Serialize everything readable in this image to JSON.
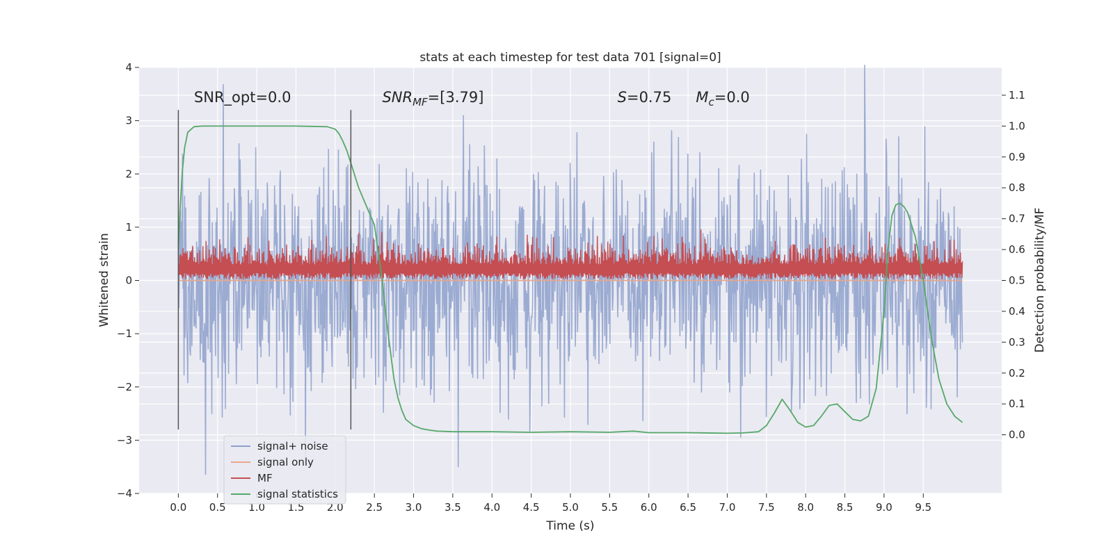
{
  "chart_data": {
    "type": "line",
    "title": "stats at each timestep for test data 701 [signal=0]",
    "xlabel": "Time (s)",
    "ylabel": "Whitened strain",
    "y2label": "Detection probability/MF",
    "xlim": [
      -0.5,
      10.5
    ],
    "ylim": [
      -4.0,
      4.0
    ],
    "y2lim": [
      -0.19,
      1.19
    ],
    "grid": true,
    "x_ticks": [
      0.0,
      0.5,
      1.0,
      1.5,
      2.0,
      2.5,
      3.0,
      3.5,
      4.0,
      4.5,
      5.0,
      5.5,
      6.0,
      6.5,
      7.0,
      7.5,
      8.0,
      8.5,
      9.0,
      9.5
    ],
    "x_tick_labels": [
      "0.0",
      "0.5",
      "1.0",
      "1.5",
      "2.0",
      "2.5",
      "3.0",
      "3.5",
      "4.0",
      "4.5",
      "5.0",
      "5.5",
      "6.0",
      "6.5",
      "7.0",
      "7.5",
      "8.0",
      "8.5",
      "9.0",
      "9.5"
    ],
    "y_ticks": [
      4,
      3,
      2,
      1,
      0,
      -1,
      -2,
      -3,
      -4
    ],
    "y_tick_labels": [
      "4",
      "3",
      "2",
      "1",
      "0",
      "−1",
      "−2",
      "−3",
      "−4"
    ],
    "y2_ticks": [
      1.1,
      1.0,
      0.9,
      0.8,
      0.7,
      0.6,
      0.5,
      0.4,
      0.3,
      0.2,
      0.1,
      0.0
    ],
    "y2_tick_labels": [
      "1.1",
      "1.0",
      "0.9",
      "0.8",
      "0.7",
      "0.6",
      "0.5",
      "0.4",
      "0.3",
      "0.2",
      "0.1",
      "0.0"
    ],
    "vlines": [
      {
        "x": 0.0,
        "y_from": -2.8,
        "y_to": 3.2
      },
      {
        "x": 2.2,
        "y_from": -2.8,
        "y_to": 3.2
      }
    ],
    "annotations": [
      {
        "id": "snr-opt",
        "x": 0.2,
        "y": 3.35,
        "text": "SNR_opt=0.0"
      },
      {
        "id": "snr-mf",
        "x": 2.6,
        "y": 3.35,
        "text": "SNR",
        "sub": "MF",
        "suffix": "=[3.79]",
        "italic": true
      },
      {
        "id": "s-value",
        "x": 5.6,
        "y": 3.35,
        "text": "S",
        "suffix": "=0.75",
        "italic": true
      },
      {
        "id": "mc-value",
        "x": 6.6,
        "y": 3.35,
        "text": "M",
        "sub": "c",
        "suffix": "=0.0",
        "italic": true
      }
    ],
    "legend": {
      "placement": "lower-left",
      "entries": [
        {
          "label": "signal+ noise",
          "color": "#8da0cb"
        },
        {
          "label": "signal only",
          "color": "#e8a68a"
        },
        {
          "label": "MF",
          "color": "#c44e52"
        },
        {
          "label": "signal statistics",
          "color": "#55a868"
        }
      ]
    },
    "series": [
      {
        "name": "signal+ noise",
        "axis": "left",
        "color": "#8da0cb",
        "style": "noise",
        "x_range": [
          0.0,
          10.0
        ],
        "n_points": 1500,
        "center": 0.0,
        "sigma": 1.05,
        "visible_max": 4.05,
        "visible_min": -3.65
      },
      {
        "name": "signal only",
        "axis": "left",
        "color": "#e8a68a",
        "style": "flat",
        "x_range": [
          0.0,
          10.0
        ],
        "value": 0.0
      },
      {
        "name": "MF",
        "axis": "left",
        "color": "#c44e52",
        "style": "noise-band",
        "x_range": [
          0.0,
          10.0
        ],
        "n_points": 1500,
        "low": 0.02,
        "high_mean": 0.35,
        "high_max": 1.02
      },
      {
        "name": "signal statistics",
        "axis": "right",
        "color": "#55a868",
        "style": "line",
        "x": [
          0.0,
          0.02,
          0.05,
          0.08,
          0.12,
          0.2,
          0.3,
          0.5,
          1.0,
          1.5,
          1.9,
          2.0,
          2.05,
          2.1,
          2.15,
          2.2,
          2.3,
          2.4,
          2.5,
          2.6,
          2.65,
          2.7,
          2.75,
          2.8,
          2.85,
          2.9,
          3.0,
          3.1,
          3.2,
          3.3,
          3.5,
          4.0,
          4.5,
          5.0,
          5.5,
          5.8,
          6.0,
          6.5,
          7.0,
          7.2,
          7.4,
          7.5,
          7.6,
          7.7,
          7.8,
          7.9,
          8.0,
          8.1,
          8.2,
          8.3,
          8.4,
          8.5,
          8.6,
          8.7,
          8.8,
          8.9,
          9.0,
          9.05,
          9.1,
          9.15,
          9.2,
          9.25,
          9.3,
          9.4,
          9.5,
          9.6,
          9.7,
          9.8,
          9.9,
          10.0
        ],
        "y": [
          0.6,
          0.72,
          0.85,
          0.93,
          0.98,
          0.998,
          1.0,
          1.0,
          1.0,
          1.0,
          0.998,
          0.99,
          0.975,
          0.95,
          0.92,
          0.88,
          0.8,
          0.74,
          0.68,
          0.5,
          0.38,
          0.28,
          0.18,
          0.12,
          0.08,
          0.05,
          0.03,
          0.02,
          0.015,
          0.012,
          0.01,
          0.01,
          0.008,
          0.01,
          0.008,
          0.012,
          0.007,
          0.007,
          0.005,
          0.006,
          0.01,
          0.03,
          0.07,
          0.115,
          0.08,
          0.04,
          0.025,
          0.03,
          0.06,
          0.095,
          0.1,
          0.075,
          0.05,
          0.045,
          0.06,
          0.15,
          0.4,
          0.6,
          0.71,
          0.745,
          0.75,
          0.74,
          0.72,
          0.64,
          0.5,
          0.32,
          0.18,
          0.1,
          0.06,
          0.04
        ]
      }
    ]
  }
}
